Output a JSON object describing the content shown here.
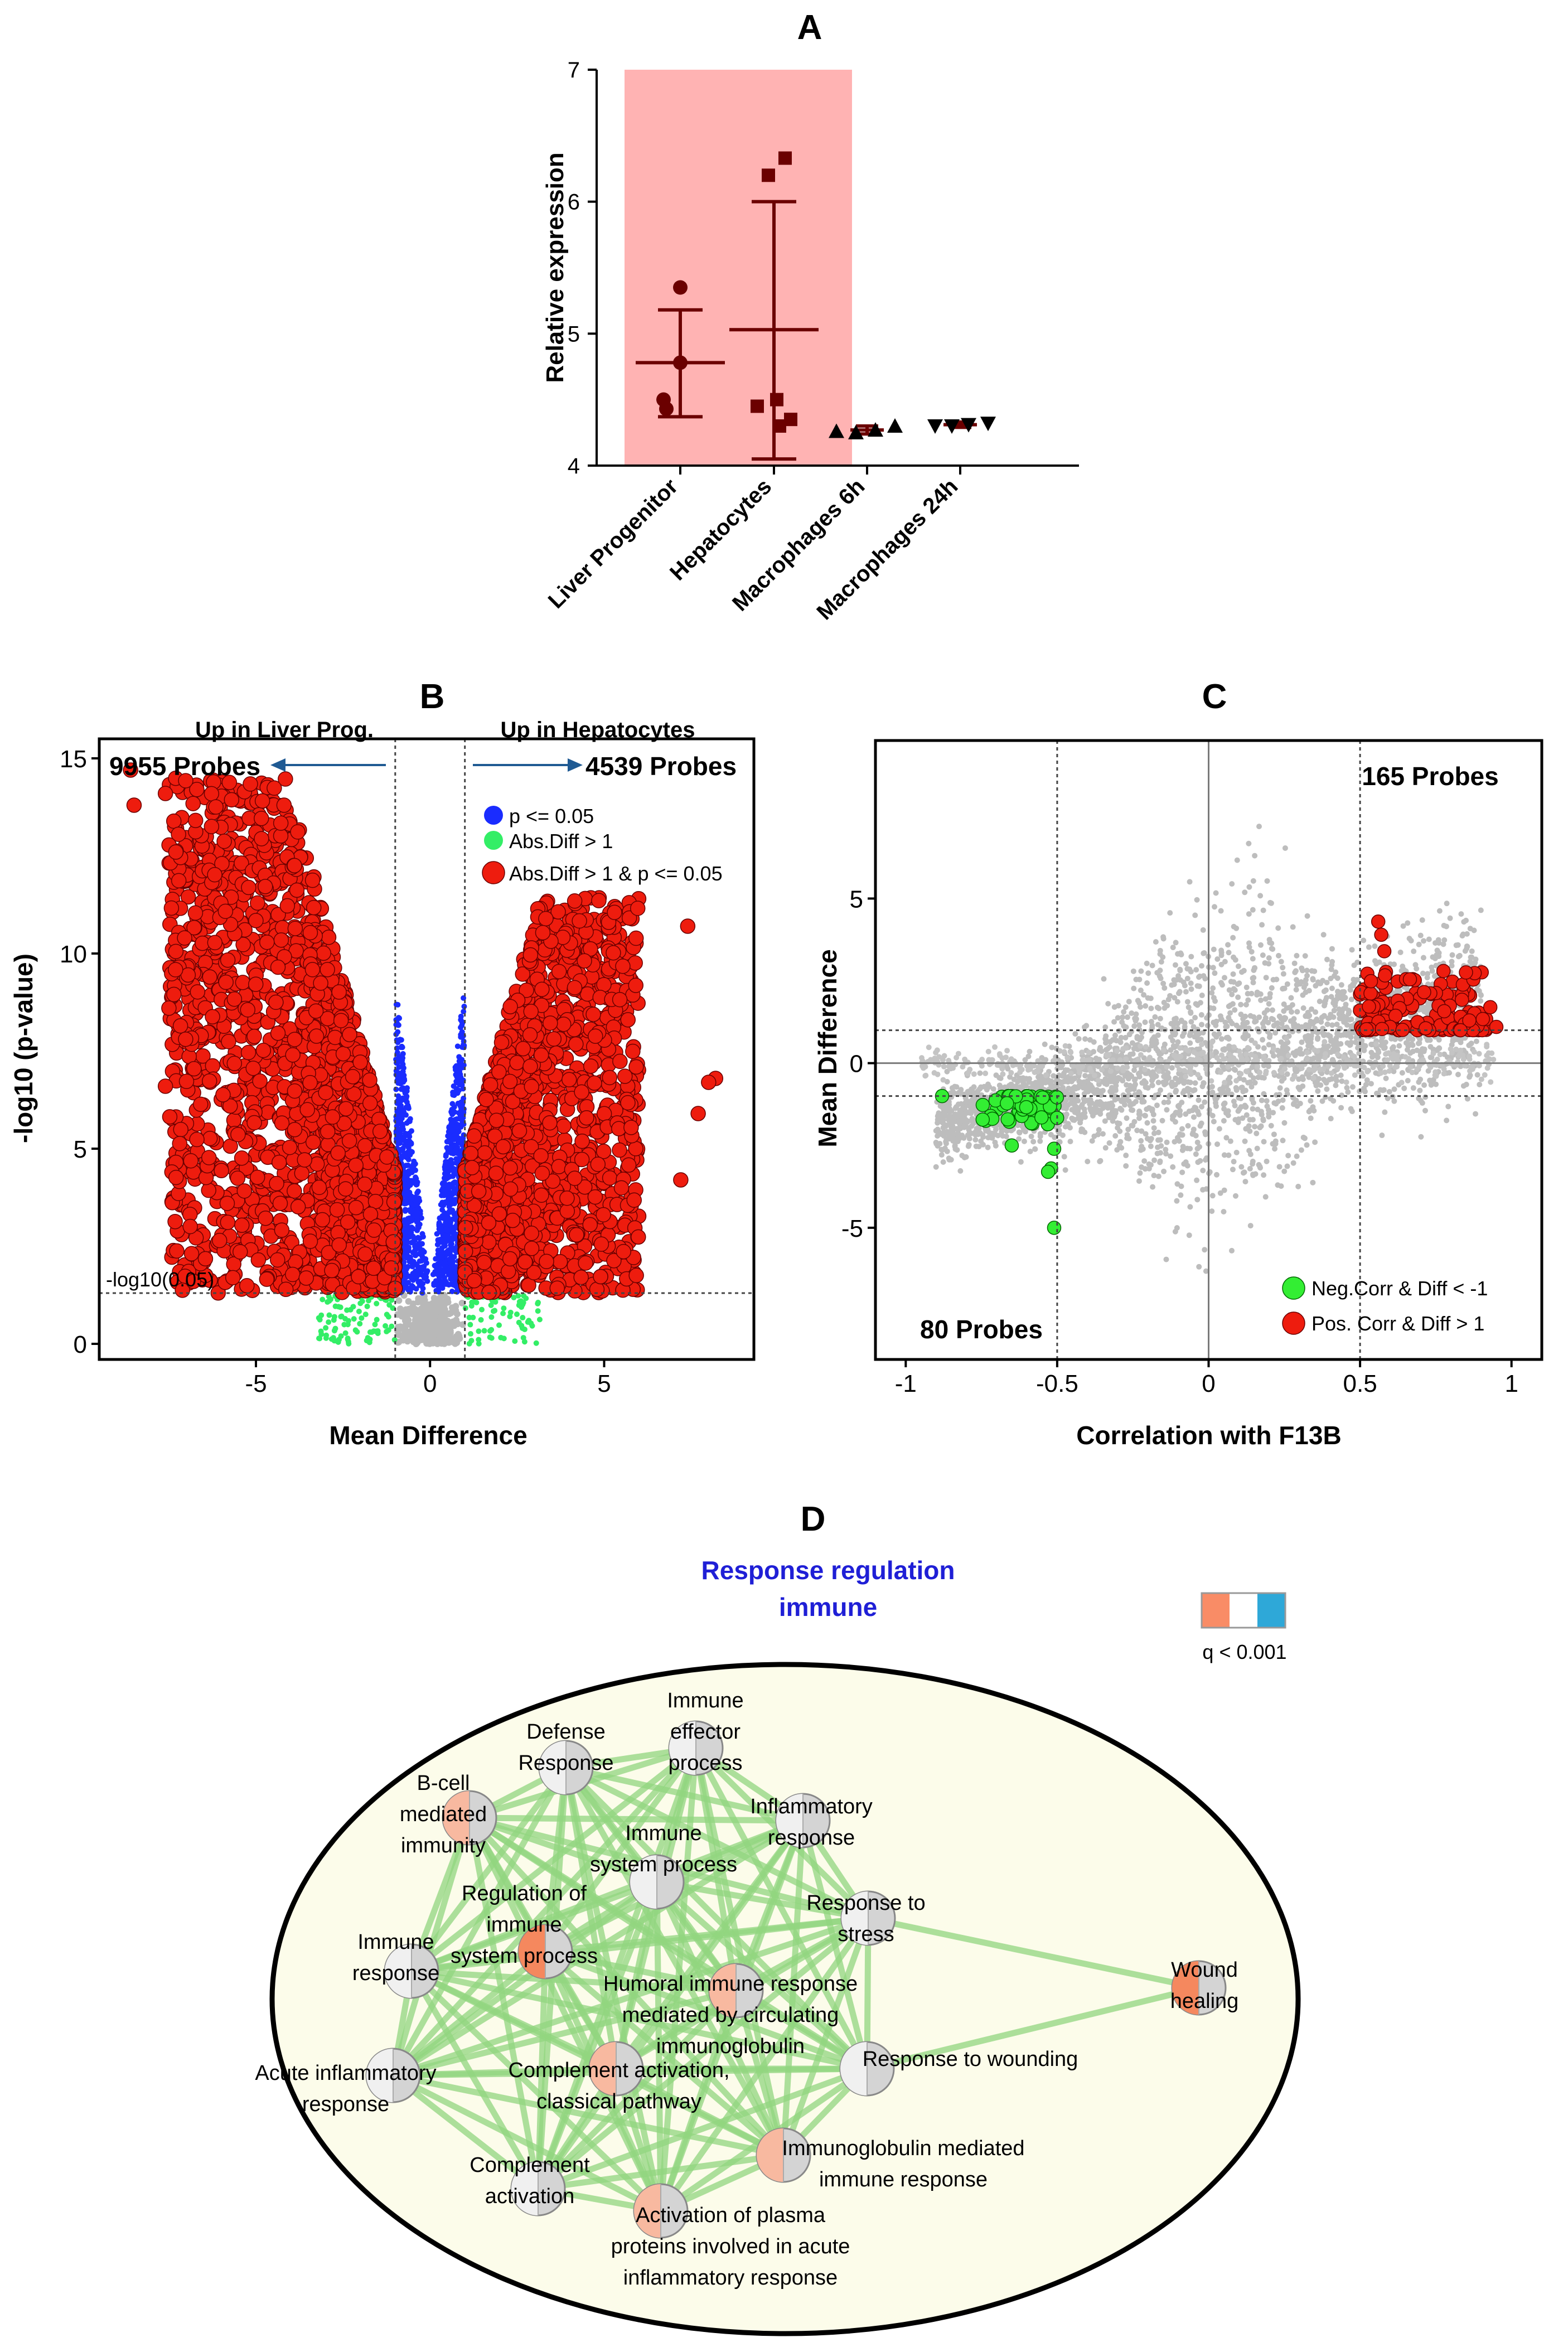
{
  "panels": {
    "A": {
      "letter": "A",
      "chart_data": {
        "type": "scatter",
        "ylabel": "Relative expression",
        "ylim": [
          4,
          7
        ],
        "yticks": [
          4,
          5,
          6,
          7
        ],
        "categories": [
          "Liver Progenitor",
          "Hepatocytes",
          "Macrophages 6h",
          "Macrophages 24h"
        ],
        "highlight_color": "#ffb3b3",
        "highlight_categories": [
          "Liver Progenitor",
          "Hepatocytes"
        ],
        "series": [
          {
            "name": "Liver Progenitor",
            "marker": "circle",
            "points": [
              5.35,
              4.78,
              4.5,
              4.43
            ],
            "mean": 4.78,
            "sd_low": 4.37,
            "sd_high": 5.18
          },
          {
            "name": "Hepatocytes",
            "marker": "square",
            "points": [
              6.33,
              6.2,
              4.5,
              4.45,
              4.35,
              4.3
            ],
            "mean": 5.03,
            "sd_low": 4.05,
            "sd_high": 6.0
          },
          {
            "name": "Macrophages 6h",
            "marker": "triangle-up",
            "points": [
              4.26,
              4.25,
              4.27,
              4.3
            ],
            "mean": 4.27,
            "sd_low": 4.24,
            "sd_high": 4.3
          },
          {
            "name": "Macrophages 24h",
            "marker": "triangle-down",
            "points": [
              4.3,
              4.3,
              4.31,
              4.32
            ],
            "mean": 4.31,
            "sd_low": 4.29,
            "sd_high": 4.33
          }
        ],
        "marker_color": "#6b0000"
      }
    },
    "B": {
      "letter": "B",
      "chart_data": {
        "type": "scatter",
        "subtype": "volcano",
        "xlabel": "Mean Difference",
        "ylabel": "-log10 (p-value)",
        "xlim": [
          -9.5,
          9.3
        ],
        "ylim": [
          -0.4,
          15.5
        ],
        "xticks": [
          -5,
          0,
          5
        ],
        "yticks": [
          0,
          5,
          10,
          15
        ],
        "threshold_x": [
          -1,
          1
        ],
        "threshold_y": 1.3,
        "threshold_label": "-log10(0.05)",
        "header_left": "Up in Liver Prog.",
        "header_right": "Up in Hepatocytes",
        "count_left": "9955 Probes",
        "count_right": "4539 Probes",
        "legend": [
          {
            "label": "p <= 0.05",
            "color": "#1a2cff"
          },
          {
            "label": "Abs.Diff > 1",
            "color": "#33ee66"
          },
          {
            "label": "Abs.Diff > 1 & p <= 0.05",
            "color": "#ee1c0e"
          }
        ],
        "colors": {
          "sig": "#ee1c0e",
          "p_only": "#1a2cff",
          "diff_only": "#33ee66",
          "ns": "#b8b8b8",
          "arrow": "#1f5a93"
        }
      }
    },
    "C": {
      "letter": "C",
      "chart_data": {
        "type": "scatter",
        "xlabel": "Correlation with F13B",
        "ylabel": "Mean Difference",
        "xlim": [
          -1.1,
          1.1
        ],
        "ylim": [
          -9,
          9.8
        ],
        "xticks": [
          -1,
          -0.5,
          0,
          0.5,
          1
        ],
        "xtick_labels": [
          "-1",
          "-0.5",
          "0",
          "0.5",
          "1"
        ],
        "yticks": [
          -5,
          0,
          5
        ],
        "threshold_x": [
          -0.5,
          0.5
        ],
        "threshold_y": [
          -1,
          1
        ],
        "count_top": "165 Probes",
        "count_bottom": "80 Probes",
        "legend": [
          {
            "label": "Neg.Corr & Diff < -1",
            "color": "#33ee33"
          },
          {
            "label": "Pos. Corr & Diff > 1",
            "color": "#ee1c0e"
          }
        ]
      }
    },
    "D": {
      "letter": "D",
      "title_line1": "Response regulation",
      "title_line2": "immune",
      "title_color": "#1f1fd6",
      "legend_label": "q < 0.001",
      "legend_colors": [
        "#f98c66",
        "#ffffff",
        "#2ea8d8"
      ],
      "edge_color": "#92d67f",
      "background": "#fcfcea",
      "nodes": [
        {
          "id": "defense",
          "lines": [
            "Defense",
            "Response"
          ]
        },
        {
          "id": "effector",
          "lines": [
            "Immune",
            "effector",
            "process"
          ]
        },
        {
          "id": "bcell",
          "lines": [
            "B-cell",
            "mediated",
            "immunity"
          ]
        },
        {
          "id": "inflammatory",
          "lines": [
            "Inflammatory",
            "response"
          ]
        },
        {
          "id": "immsys",
          "lines": [
            "Immune",
            "system process"
          ]
        },
        {
          "id": "regulation",
          "lines": [
            "Regulation of",
            "immune",
            "system process"
          ]
        },
        {
          "id": "stress",
          "lines": [
            "Response to",
            "stress"
          ]
        },
        {
          "id": "immresp",
          "lines": [
            "Immune",
            "response"
          ]
        },
        {
          "id": "humoral",
          "lines": [
            "Humoral immune response",
            "mediated by circulating",
            "immunoglobulin"
          ]
        },
        {
          "id": "wounding",
          "lines": [
            "Response to wounding"
          ]
        },
        {
          "id": "acute",
          "lines": [
            "Acute inflammatory",
            "response"
          ]
        },
        {
          "id": "classical",
          "lines": [
            "Complement activation,",
            "classical pathway"
          ]
        },
        {
          "id": "igmed",
          "lines": [
            "Immunoglobulin mediated",
            "immune response"
          ]
        },
        {
          "id": "complement",
          "lines": [
            "Complement",
            "activation"
          ]
        },
        {
          "id": "plasma",
          "lines": [
            "Activation of plasma",
            "proteins involved in acute",
            "inflammatory response"
          ]
        },
        {
          "id": "wound",
          "lines": [
            "Wound",
            "healing"
          ]
        }
      ]
    }
  }
}
